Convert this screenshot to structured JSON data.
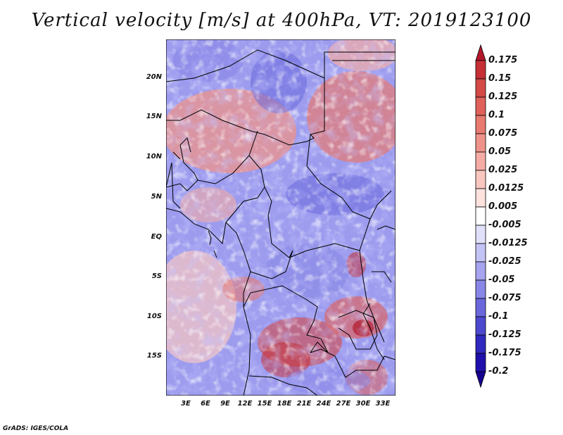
{
  "title": "Vertical velocity [m/s] at 400hPa, VT: 2019123100",
  "footer": "GrADS: IGES/COLA",
  "lat_labels": [
    "20N",
    "15N",
    "10N",
    "5N",
    "EQ",
    "5S",
    "10S",
    "15S"
  ],
  "lon_labels": [
    "3E",
    "6E",
    "9E",
    "12E",
    "15E",
    "18E",
    "21E",
    "24E",
    "27E",
    "30E",
    "33E"
  ],
  "colorbar": {
    "labels": [
      "0.175",
      "0.15",
      "0.125",
      "0.1",
      "0.075",
      "0.05",
      "0.025",
      "0.0125",
      "0.005",
      "-0.005",
      "-0.0125",
      "-0.025",
      "-0.05",
      "-0.075",
      "-0.1",
      "-0.125",
      "-0.175",
      "-0.2"
    ],
    "colors": [
      "#b2182b",
      "#c62f36",
      "#d44a47",
      "#e0615a",
      "#e87a70",
      "#ef938a",
      "#f5aca5",
      "#f9c6c0",
      "#fde2de",
      "#ffffff",
      "#e0e0fb",
      "#c4c3f5",
      "#a6a4ee",
      "#8886e6",
      "#6a67dc",
      "#4c49d0",
      "#3029c0",
      "#1f10ac",
      "#160090"
    ]
  },
  "chart_data": {
    "type": "heatmap",
    "title": "Vertical velocity [m/s] at 400hPa, VT: 2019123100",
    "variable": "Vertical velocity",
    "units": "m/s",
    "level": "400hPa",
    "valid_time": "2019123100",
    "lon_range": [
      0,
      35
    ],
    "lat_range": [
      -19,
      24
    ],
    "contour_levels": [
      -0.2,
      -0.175,
      -0.125,
      -0.1,
      -0.075,
      -0.05,
      -0.025,
      -0.0125,
      -0.005,
      0.005,
      0.0125,
      0.025,
      0.05,
      0.075,
      0.1,
      0.125,
      0.15,
      0.175
    ]
  }
}
